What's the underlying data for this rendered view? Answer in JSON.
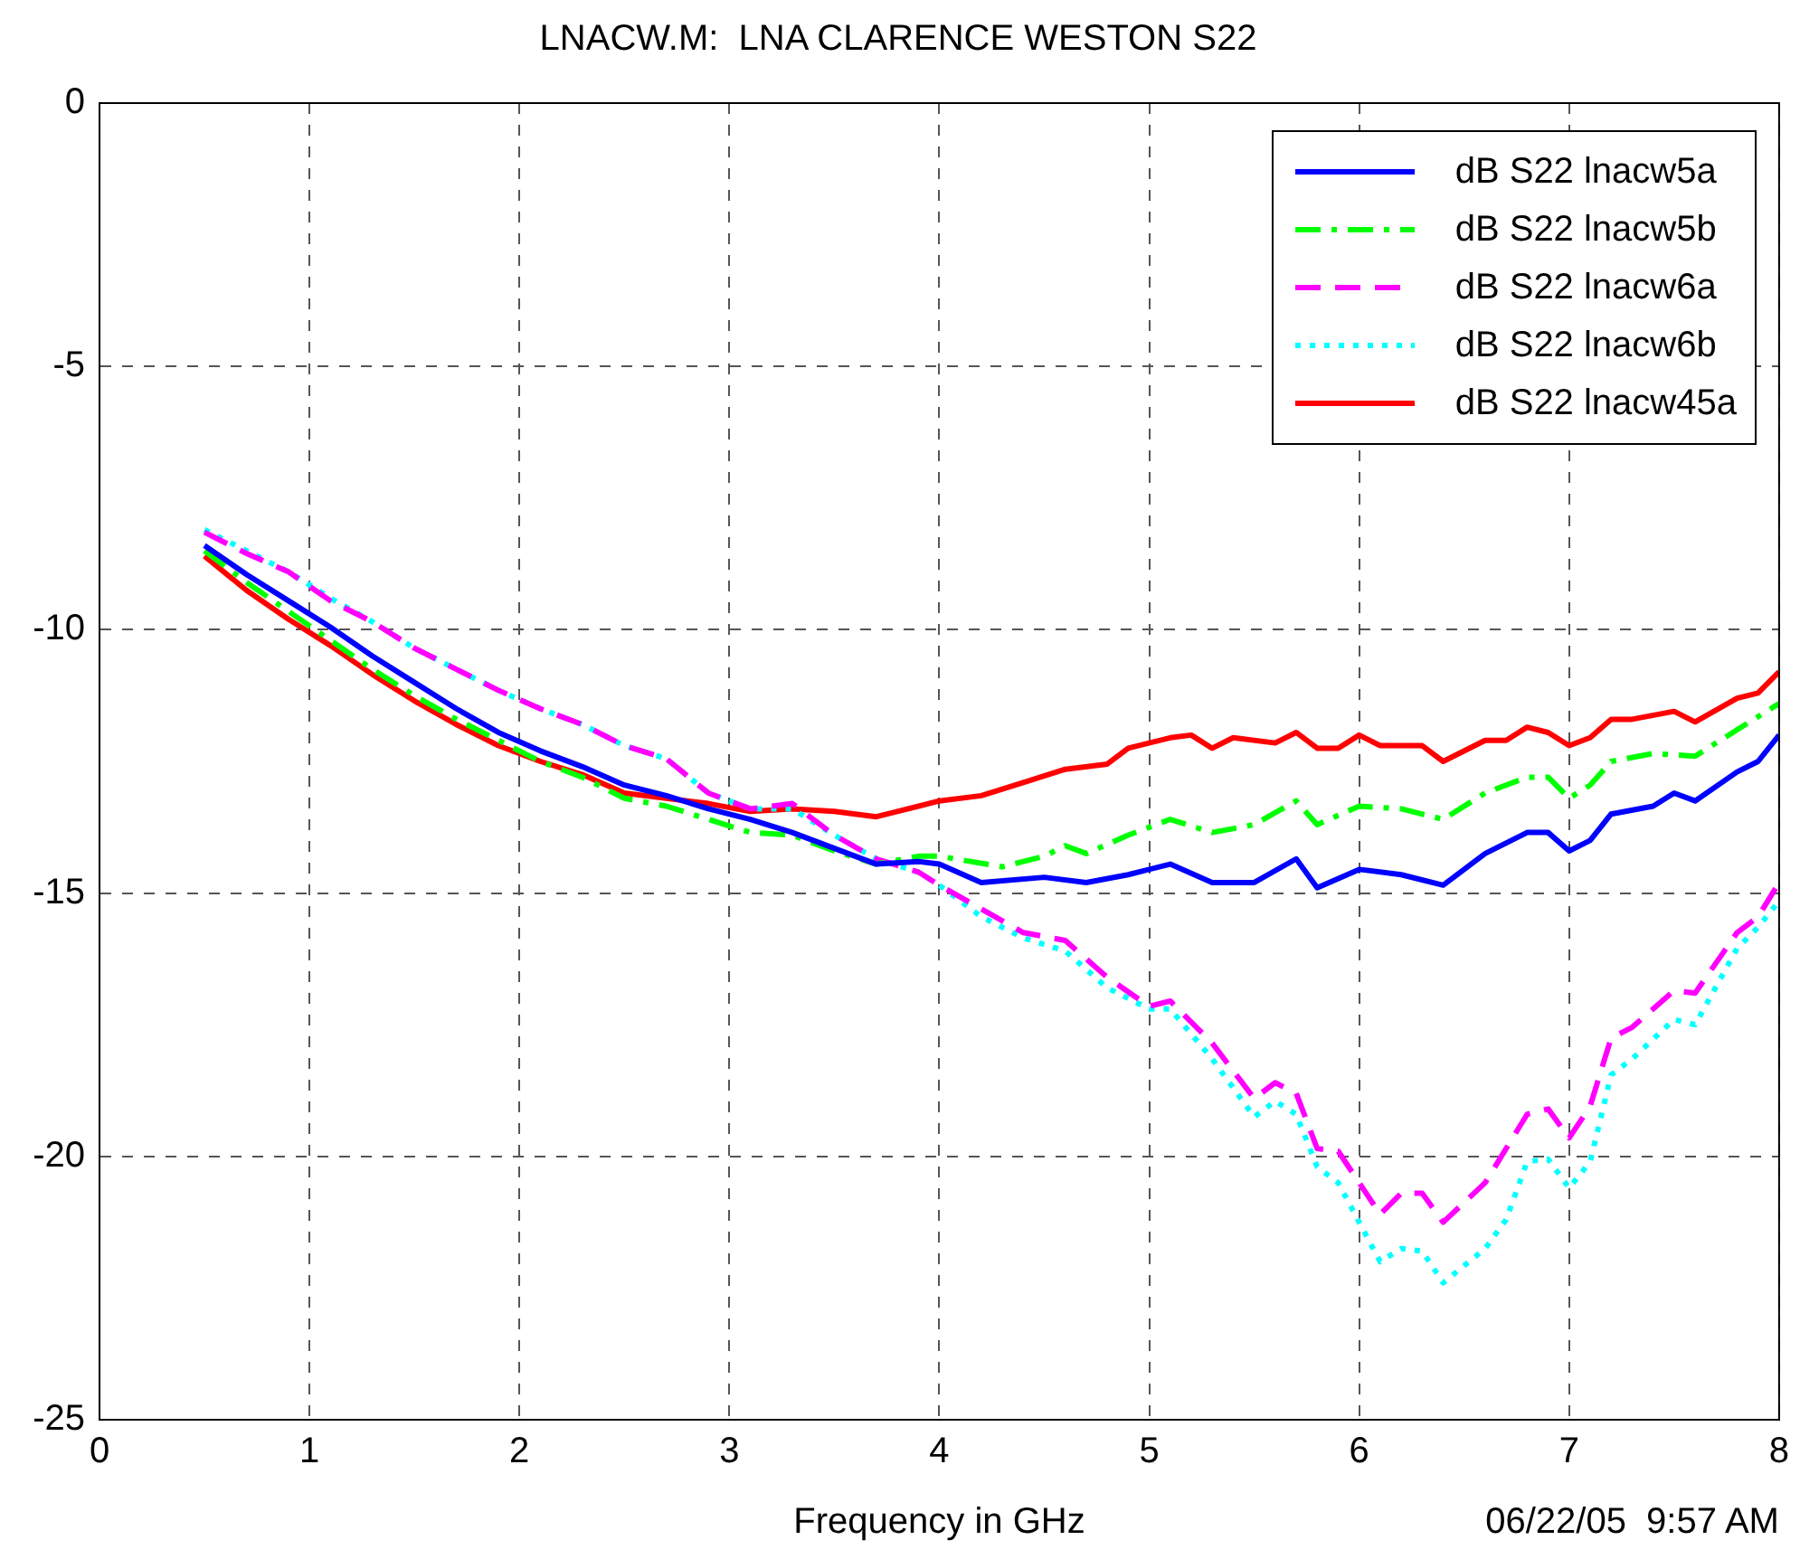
{
  "chart_data": {
    "type": "line",
    "title": "LNACW.M:  LNA CLARENCE WESTON S22",
    "xlabel": "Frequency in GHz",
    "annotations": [
      "06/22/05  9:57 AM"
    ],
    "xlim": [
      0,
      8
    ],
    "xticks": [
      0,
      1,
      2,
      3,
      4,
      5,
      6,
      7,
      8
    ],
    "ylim": [
      -25,
      0
    ],
    "yticks": [
      -25,
      -20,
      -15,
      -10,
      -5,
      0
    ],
    "grid": true,
    "legend": "top right",
    "marker": "none",
    "series": [
      {
        "name": "dB S22 lnacw5a",
        "color": "#0000ff",
        "line_style": "solid",
        "x": [
          0.5,
          0.7,
          0.9,
          1.1,
          1.3,
          1.5,
          1.7,
          1.9,
          2.1,
          2.3,
          2.5,
          2.7,
          2.9,
          3.1,
          3.3,
          3.5,
          3.7,
          3.9,
          4.0,
          4.2,
          4.5,
          4.7,
          4.9,
          5.1,
          5.3,
          5.5,
          5.7,
          5.8,
          6.0,
          6.2,
          6.4,
          6.6,
          6.8,
          6.9,
          7.0,
          7.1,
          7.2,
          7.4,
          7.5,
          7.6,
          7.8,
          7.9,
          8.0
        ],
        "values": [
          -8.4,
          -8.95,
          -9.45,
          -9.95,
          -10.5,
          -11.0,
          -11.5,
          -11.95,
          -12.3,
          -12.6,
          -12.95,
          -13.15,
          -13.4,
          -13.6,
          -13.85,
          -14.15,
          -14.45,
          -14.4,
          -14.45,
          -14.8,
          -14.7,
          -14.8,
          -14.65,
          -14.45,
          -14.8,
          -14.8,
          -14.35,
          -14.9,
          -14.55,
          -14.65,
          -14.85,
          -14.25,
          -13.85,
          -13.85,
          -14.2,
          -14.0,
          -13.5,
          -13.35,
          -13.1,
          -13.25,
          -12.7,
          -12.5,
          -12.0
        ]
      },
      {
        "name": "dB S22 lnacw5b",
        "color": "#00ff00",
        "line_style": "dashdot",
        "x": [
          0.5,
          0.7,
          0.9,
          1.1,
          1.3,
          1.5,
          1.7,
          1.9,
          2.1,
          2.3,
          2.5,
          2.7,
          2.9,
          3.1,
          3.3,
          3.5,
          3.7,
          3.9,
          4.0,
          4.3,
          4.5,
          4.6,
          4.7,
          4.9,
          5.1,
          5.3,
          5.5,
          5.7,
          5.8,
          6.0,
          6.2,
          6.4,
          6.6,
          6.8,
          6.9,
          7.0,
          7.1,
          7.2,
          7.4,
          7.6,
          7.8,
          8.0
        ],
        "values": [
          -8.5,
          -9.1,
          -9.65,
          -10.2,
          -10.75,
          -11.25,
          -11.7,
          -12.1,
          -12.5,
          -12.8,
          -13.2,
          -13.35,
          -13.6,
          -13.85,
          -13.9,
          -14.2,
          -14.45,
          -14.3,
          -14.3,
          -14.5,
          -14.3,
          -14.1,
          -14.25,
          -13.9,
          -13.6,
          -13.85,
          -13.7,
          -13.25,
          -13.7,
          -13.35,
          -13.4,
          -13.6,
          -13.1,
          -12.8,
          -12.8,
          -13.2,
          -12.95,
          -12.5,
          -12.35,
          -12.4,
          -11.9,
          -11.4
        ]
      },
      {
        "name": "dB S22 lnacw6a",
        "color": "#ff00ff",
        "line_style": "dashed",
        "x": [
          0.5,
          0.7,
          0.9,
          1.1,
          1.3,
          1.5,
          1.7,
          1.9,
          2.1,
          2.3,
          2.5,
          2.7,
          2.9,
          3.1,
          3.3,
          3.5,
          3.7,
          3.9,
          4.0,
          4.2,
          4.4,
          4.6,
          4.8,
          5.0,
          5.1,
          5.3,
          5.5,
          5.6,
          5.7,
          5.8,
          5.9,
          6.1,
          6.2,
          6.3,
          6.4,
          6.6,
          6.8,
          6.9,
          7.0,
          7.1,
          7.2,
          7.3,
          7.5,
          7.6,
          7.8,
          7.9,
          8.0
        ],
        "values": [
          -8.15,
          -8.55,
          -8.9,
          -9.45,
          -9.85,
          -10.35,
          -10.75,
          -11.15,
          -11.5,
          -11.8,
          -12.2,
          -12.45,
          -13.1,
          -13.4,
          -13.3,
          -13.9,
          -14.35,
          -14.6,
          -14.85,
          -15.3,
          -15.75,
          -15.9,
          -16.6,
          -17.15,
          -17.05,
          -17.85,
          -18.9,
          -18.6,
          -18.8,
          -19.85,
          -19.9,
          -21.1,
          -20.7,
          -20.7,
          -21.25,
          -20.5,
          -19.2,
          -19.1,
          -19.65,
          -19.05,
          -17.75,
          -17.55,
          -16.85,
          -16.9,
          -15.75,
          -15.45,
          -14.8
        ]
      },
      {
        "name": "dB S22 lnacw6b",
        "color": "#00ffff",
        "line_style": "dotted",
        "x": [
          0.5,
          0.7,
          0.9,
          1.1,
          1.3,
          1.5,
          1.7,
          1.9,
          2.1,
          2.3,
          2.5,
          2.7,
          2.9,
          3.1,
          3.3,
          3.5,
          3.7,
          3.9,
          4.0,
          4.2,
          4.4,
          4.6,
          4.8,
          5.0,
          5.1,
          5.3,
          5.5,
          5.6,
          5.7,
          5.8,
          5.9,
          6.1,
          6.2,
          6.3,
          6.4,
          6.6,
          6.7,
          6.8,
          6.9,
          7.0,
          7.1,
          7.2,
          7.3,
          7.5,
          7.6,
          7.8,
          7.9,
          8.0
        ],
        "values": [
          -8.1,
          -8.5,
          -8.9,
          -9.4,
          -9.85,
          -10.35,
          -10.75,
          -11.15,
          -11.5,
          -11.8,
          -12.2,
          -12.45,
          -13.1,
          -13.4,
          -13.4,
          -13.9,
          -14.35,
          -14.6,
          -14.85,
          -15.45,
          -15.85,
          -16.1,
          -16.8,
          -17.2,
          -17.2,
          -18.15,
          -19.25,
          -18.95,
          -19.2,
          -20.2,
          -20.5,
          -22.0,
          -21.75,
          -21.8,
          -22.4,
          -21.75,
          -21.2,
          -20.1,
          -20.05,
          -20.6,
          -20.1,
          -18.45,
          -18.15,
          -17.4,
          -17.5,
          -16.05,
          -15.65,
          -15.15
        ]
      },
      {
        "name": "dB S22 lnacw45a",
        "color": "#ff0000",
        "line_style": "solid",
        "x": [
          0.5,
          0.7,
          0.9,
          1.1,
          1.3,
          1.5,
          1.7,
          1.9,
          2.1,
          2.3,
          2.5,
          2.7,
          2.9,
          3.1,
          3.3,
          3.5,
          3.7,
          3.8,
          4.0,
          4.2,
          4.4,
          4.6,
          4.8,
          4.9,
          5.1,
          5.2,
          5.3,
          5.4,
          5.6,
          5.7,
          5.8,
          5.9,
          6.0,
          6.1,
          6.3,
          6.4,
          6.6,
          6.7,
          6.8,
          6.9,
          7.0,
          7.1,
          7.2,
          7.3,
          7.5,
          7.6,
          7.8,
          7.9,
          8.0
        ],
        "values": [
          -8.6,
          -9.25,
          -9.8,
          -10.3,
          -10.85,
          -11.35,
          -11.8,
          -12.2,
          -12.5,
          -12.75,
          -13.1,
          -13.2,
          -13.3,
          -13.45,
          -13.4,
          -13.45,
          -13.55,
          -13.45,
          -13.25,
          -13.15,
          -12.9,
          -12.65,
          -12.55,
          -12.25,
          -12.05,
          -12.0,
          -12.25,
          -12.05,
          -12.15,
          -11.95,
          -12.25,
          -12.25,
          -12.0,
          -12.2,
          -12.2,
          -12.5,
          -12.1,
          -12.1,
          -11.85,
          -11.95,
          -12.2,
          -12.05,
          -11.7,
          -11.7,
          -11.55,
          -11.75,
          -11.3,
          -11.2,
          -10.8
        ]
      }
    ]
  }
}
